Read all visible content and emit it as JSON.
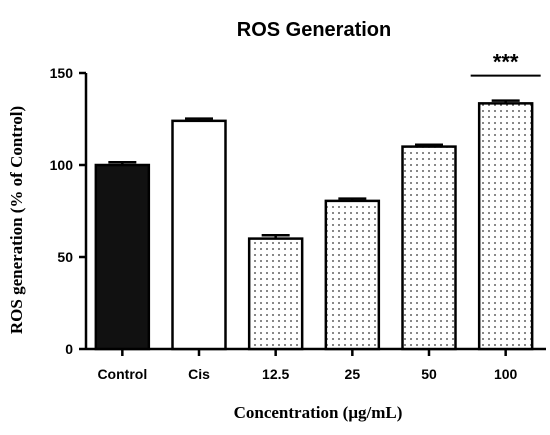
{
  "chart_data": {
    "type": "bar",
    "title": "ROS Generation",
    "xlabel": "Concentration (μg/mL)",
    "ylabel": "ROS generation (% of Control)",
    "categories": [
      "Control",
      "Cis",
      "12.5",
      "25",
      "50",
      "100"
    ],
    "values": [
      100,
      124,
      60,
      80.5,
      110,
      133.5
    ],
    "errors": [
      1.5,
      1.2,
      1.8,
      1.2,
      1.0,
      1.5
    ],
    "ylim": [
      0,
      150
    ],
    "yticks": [
      0,
      50,
      100,
      150
    ],
    "fills": [
      "solid-black",
      "white",
      "dotted",
      "dotted",
      "dotted",
      "dotted"
    ],
    "annotations": [
      {
        "category": "100",
        "text": "***"
      }
    ],
    "grid": false,
    "legend": "none"
  },
  "colors": {
    "bar_solid": "#111111",
    "bar_outline": "#000000",
    "background": "#ffffff"
  }
}
